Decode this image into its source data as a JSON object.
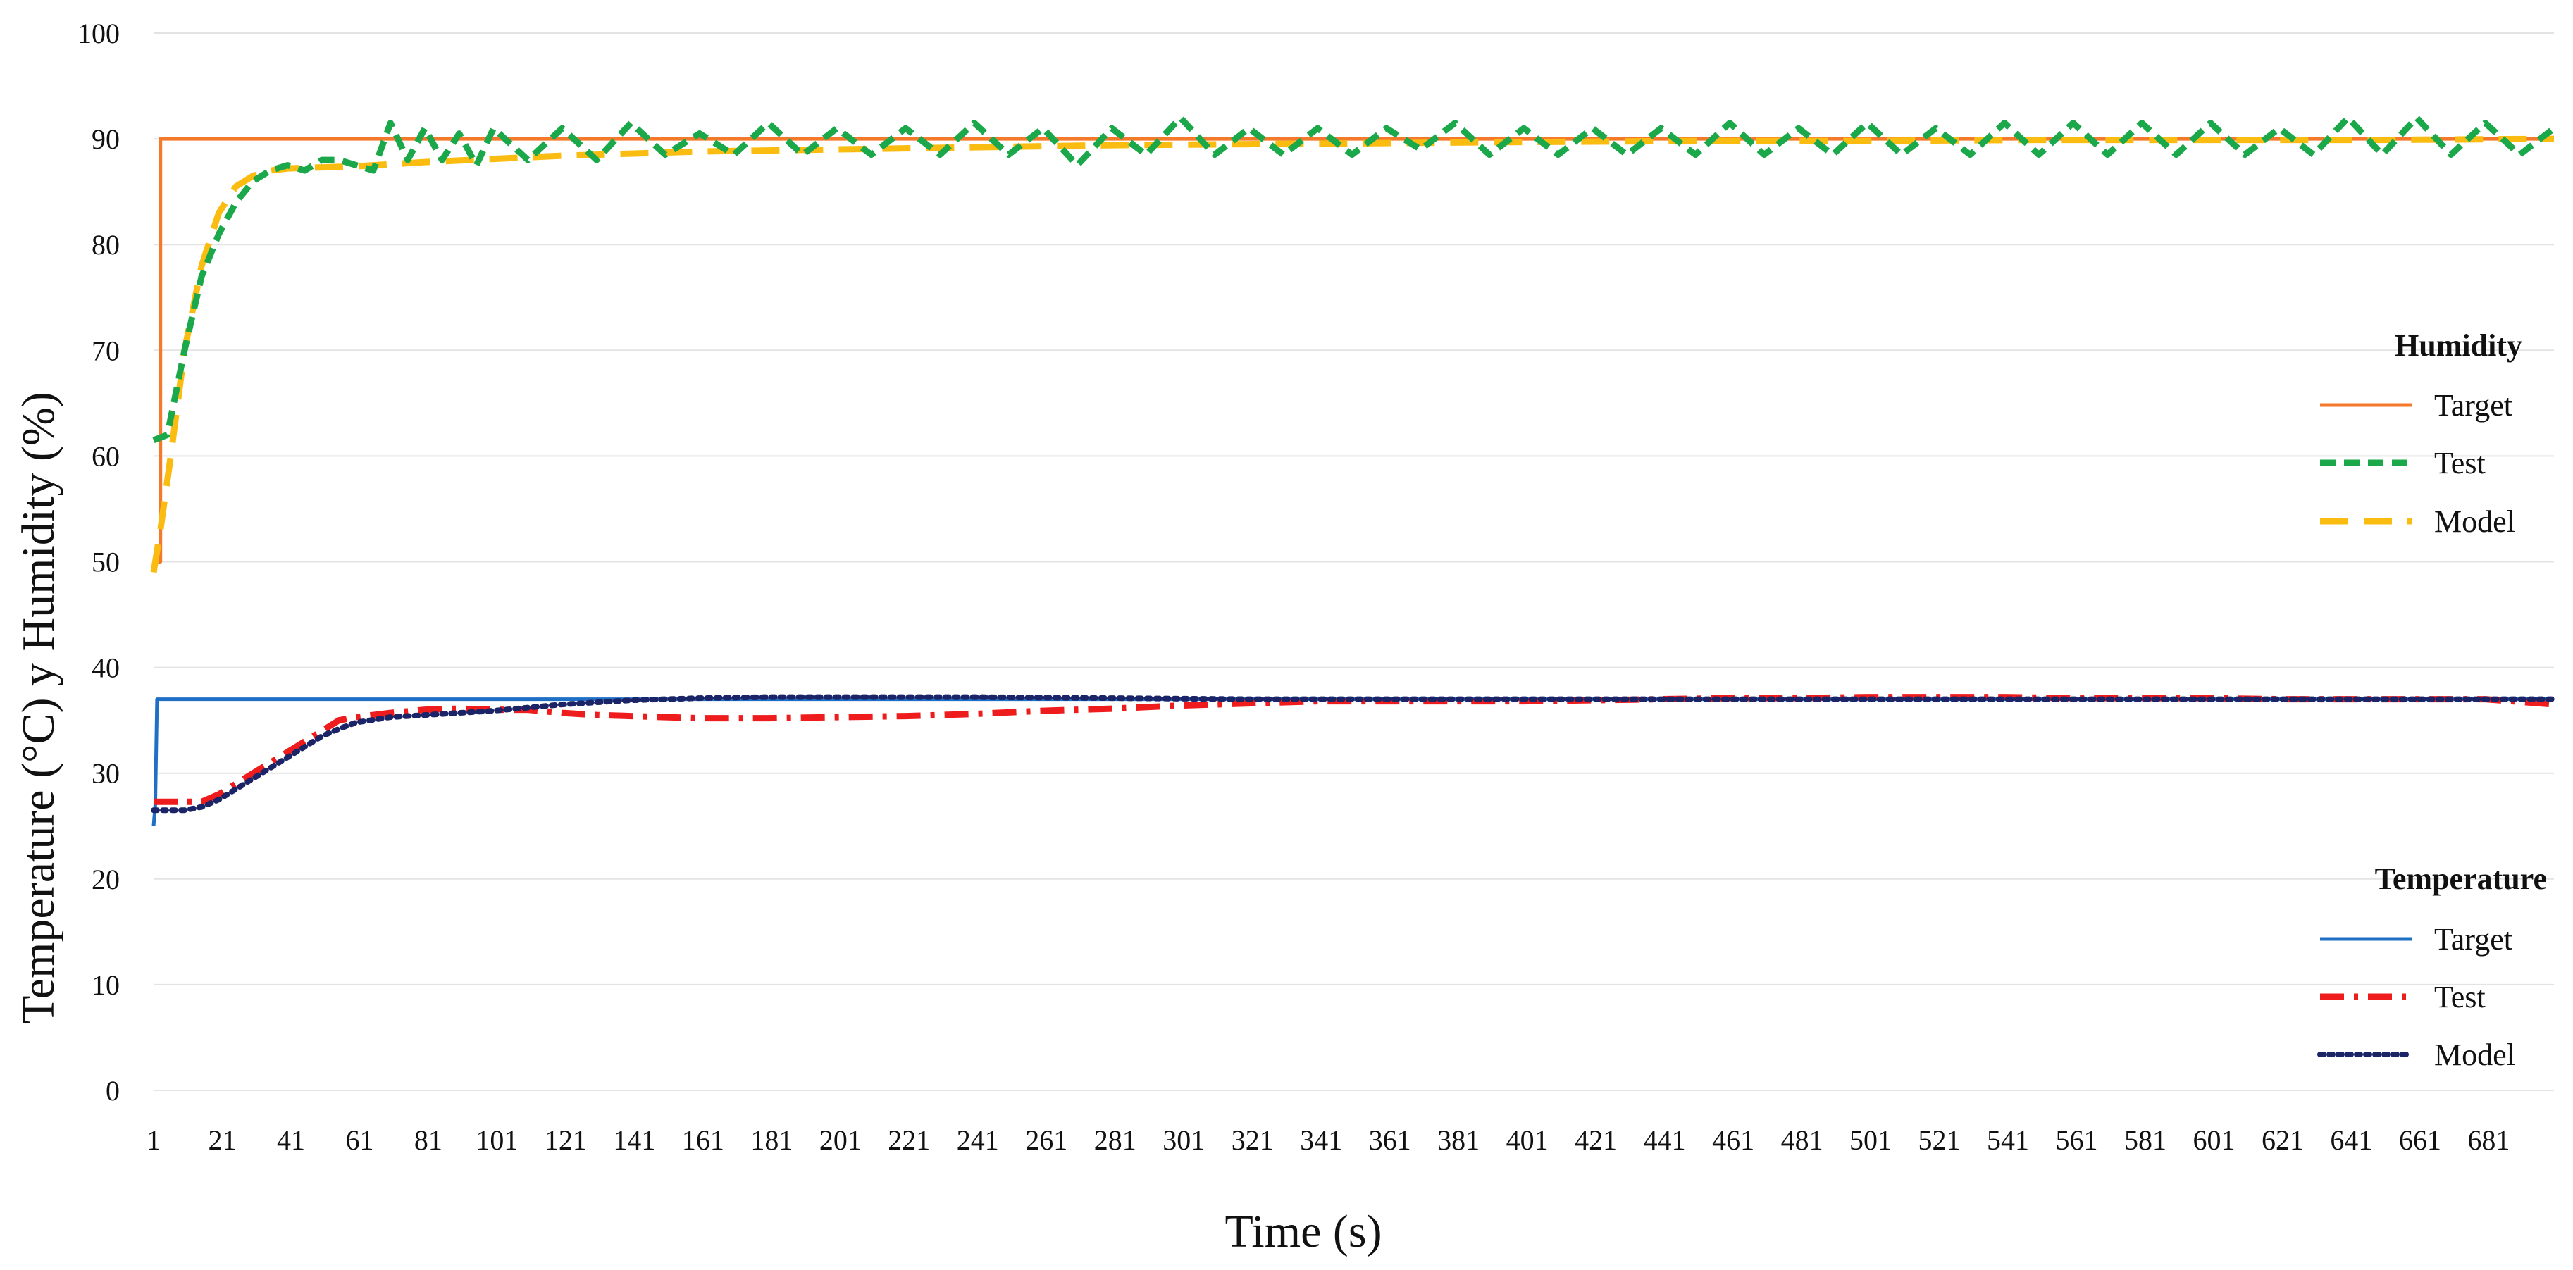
{
  "chart_data": {
    "type": "line",
    "xlabel": "Time (s)",
    "ylabel": "Temperature (°C) y Humidity (%)",
    "xlim": [
      1,
      700
    ],
    "ylim": [
      0,
      100
    ],
    "y_ticks": [
      0,
      10,
      20,
      30,
      40,
      50,
      60,
      70,
      80,
      90,
      100
    ],
    "x_ticks": [
      1,
      21,
      41,
      61,
      81,
      101,
      121,
      141,
      161,
      181,
      201,
      221,
      241,
      261,
      281,
      301,
      321,
      341,
      361,
      381,
      401,
      421,
      441,
      461,
      481,
      501,
      521,
      541,
      561,
      581,
      601,
      621,
      641,
      661,
      681
    ],
    "grid": "horizontal",
    "legend": {
      "placement": "right",
      "groups": [
        {
          "title": "Humidity",
          "entries": [
            "Target",
            "Test",
            "Model"
          ]
        },
        {
          "title": "Temperature",
          "entries": [
            "Target",
            "Test",
            "Model"
          ]
        }
      ]
    },
    "series": [
      {
        "group": "Humidity",
        "name": "Target",
        "color": "#f5792a",
        "style": "solid",
        "x": [
          1,
          3,
          3,
          700
        ],
        "y": [
          50,
          50,
          90,
          90
        ]
      },
      {
        "group": "Humidity",
        "name": "Test",
        "color": "#1aa84a",
        "style": "dashed",
        "x": [
          1,
          5,
          10,
          15,
          20,
          25,
          30,
          35,
          40,
          45,
          50,
          55,
          60,
          65,
          70,
          75,
          80,
          85,
          90,
          95,
          100,
          110,
          120,
          130,
          140,
          150,
          160,
          170,
          180,
          190,
          200,
          210,
          220,
          230,
          240,
          250,
          260,
          270,
          280,
          290,
          300,
          310,
          320,
          330,
          340,
          350,
          360,
          370,
          380,
          390,
          400,
          410,
          420,
          430,
          440,
          450,
          460,
          470,
          480,
          490,
          500,
          510,
          520,
          530,
          540,
          550,
          560,
          570,
          580,
          590,
          600,
          610,
          620,
          630,
          640,
          650,
          660,
          670,
          680,
          690,
          700
        ],
        "y": [
          61.5,
          62,
          70,
          77,
          81,
          84,
          86,
          87,
          87.5,
          87,
          88,
          88,
          87.5,
          87,
          91.5,
          88,
          91,
          88,
          90.5,
          87.5,
          91,
          88,
          91,
          88,
          91.5,
          88.5,
          90.5,
          88.5,
          91.5,
          88.5,
          91,
          88.5,
          91,
          88.5,
          91.5,
          88.5,
          91,
          87.5,
          91,
          88.5,
          92,
          88.5,
          91,
          88.5,
          91,
          88.5,
          91,
          89,
          91.5,
          88.5,
          91,
          88.5,
          91,
          88.5,
          91,
          88.5,
          91.5,
          88.5,
          91,
          88.5,
          91.5,
          88.5,
          91,
          88.5,
          91.5,
          88.5,
          91.5,
          88.5,
          91.5,
          88.5,
          91.5,
          88.5,
          91,
          88.5,
          92,
          88.5,
          92,
          88.5,
          91.5,
          88.5,
          91
        ]
      },
      {
        "group": "Humidity",
        "name": "Model",
        "color": "#fbbc12",
        "style": "longdash",
        "x": [
          1,
          3,
          6,
          10,
          15,
          20,
          25,
          30,
          35,
          40,
          50,
          60,
          70,
          80,
          100,
          120,
          140,
          160,
          180,
          200,
          240,
          280,
          320,
          360,
          400,
          450,
          500,
          550,
          600,
          650,
          700
        ],
        "y": [
          49,
          53,
          60,
          70,
          78,
          83,
          85.5,
          86.5,
          87,
          87.2,
          87.3,
          87.4,
          87.6,
          87.8,
          88.1,
          88.4,
          88.6,
          88.8,
          88.9,
          89,
          89.2,
          89.4,
          89.5,
          89.6,
          89.7,
          89.8,
          89.8,
          89.9,
          89.9,
          89.9,
          90
        ]
      },
      {
        "group": "Temperature",
        "name": "Target",
        "color": "#1f6fc5",
        "style": "solid",
        "x": [
          1,
          1.5,
          2,
          700
        ],
        "y": [
          25,
          27,
          37,
          37
        ]
      },
      {
        "group": "Temperature",
        "name": "Test",
        "color": "#ee1c1c",
        "style": "dashdot",
        "x": [
          1,
          5,
          10,
          15,
          20,
          25,
          30,
          35,
          40,
          45,
          50,
          55,
          60,
          65,
          70,
          80,
          90,
          100,
          110,
          120,
          130,
          140,
          150,
          160,
          180,
          200,
          220,
          240,
          260,
          280,
          300,
          320,
          340,
          360,
          380,
          400,
          420,
          440,
          460,
          480,
          500,
          520,
          540,
          560,
          580,
          600,
          620,
          640,
          660,
          680,
          700
        ],
        "y": [
          27.3,
          27.3,
          27.3,
          27.3,
          28,
          29,
          30,
          31,
          32,
          33,
          34,
          35,
          35.3,
          35.5,
          35.7,
          36,
          36.1,
          36,
          36,
          35.7,
          35.5,
          35.4,
          35.3,
          35.2,
          35.2,
          35.3,
          35.4,
          35.6,
          35.9,
          36.1,
          36.4,
          36.6,
          36.8,
          36.8,
          36.8,
          36.8,
          36.9,
          37,
          37.1,
          37.1,
          37.2,
          37.2,
          37.2,
          37.1,
          37.1,
          37.1,
          37,
          37,
          37,
          37,
          36.5
        ]
      },
      {
        "group": "Temperature",
        "name": "Model",
        "color": "#1b2466",
        "style": "dotted",
        "x": [
          1,
          5,
          10,
          15,
          20,
          25,
          30,
          35,
          40,
          45,
          50,
          55,
          60,
          70,
          80,
          90,
          100,
          110,
          120,
          130,
          140,
          160,
          180,
          200,
          240,
          280,
          320,
          360,
          400,
          450,
          500,
          550,
          600,
          650,
          700
        ],
        "y": [
          26.5,
          26.5,
          26.5,
          26.8,
          27.5,
          28.5,
          29.5,
          30.5,
          31.5,
          32.5,
          33.5,
          34.2,
          34.8,
          35.3,
          35.5,
          35.7,
          35.9,
          36.2,
          36.5,
          36.7,
          36.9,
          37.1,
          37.2,
          37.2,
          37.2,
          37.1,
          37,
          37,
          37,
          37,
          37,
          37,
          37,
          37,
          37
        ]
      }
    ]
  }
}
